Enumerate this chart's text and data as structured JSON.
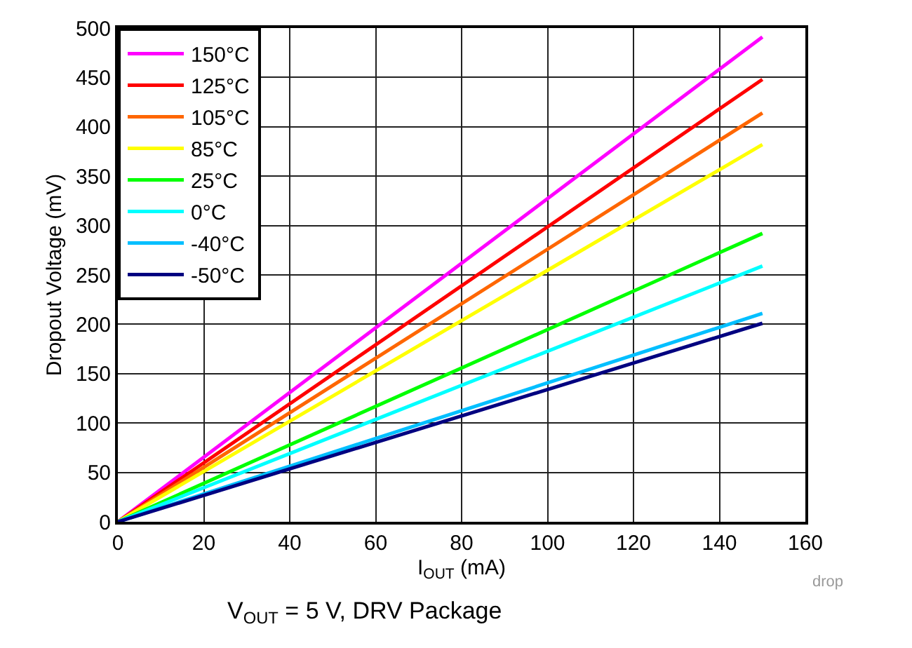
{
  "chart_data": {
    "type": "line",
    "xlabel": "I$_{OUT}$ (mA)",
    "ylabel": "Dropout Voltage (mV)",
    "x": [
      0,
      150
    ],
    "xlim": [
      0,
      160
    ],
    "xticks": [
      0,
      20,
      40,
      60,
      80,
      100,
      120,
      140,
      160
    ],
    "ylim": [
      0,
      500
    ],
    "yticks": [
      0,
      50,
      100,
      150,
      200,
      250,
      300,
      350,
      400,
      450,
      500
    ],
    "grid": true,
    "legend": "top left",
    "marker": "none",
    "line_style": "solid",
    "series": [
      {
        "name": "150°C",
        "color": "#ff00ff",
        "values": [
          0,
          491
        ]
      },
      {
        "name": "125°C",
        "color": "#ff0000",
        "values": [
          0,
          448
        ]
      },
      {
        "name": "105°C",
        "color": "#ff6600",
        "values": [
          0,
          414
        ]
      },
      {
        "name": "85°C",
        "color": "#ffff00",
        "values": [
          0,
          382
        ]
      },
      {
        "name": "25°C",
        "color": "#00ff00",
        "values": [
          0,
          292
        ]
      },
      {
        "name": "0°C",
        "color": "#00ffff",
        "values": [
          0,
          259
        ]
      },
      {
        "name": "-40°C",
        "color": "#00bfff",
        "values": [
          0,
          211
        ]
      },
      {
        "name": "-50°C",
        "color": "#000080",
        "values": [
          0,
          201
        ]
      }
    ],
    "annotations": [
      "drop",
      "V$_{OUT}$ = 5 V, DRV Package"
    ]
  }
}
